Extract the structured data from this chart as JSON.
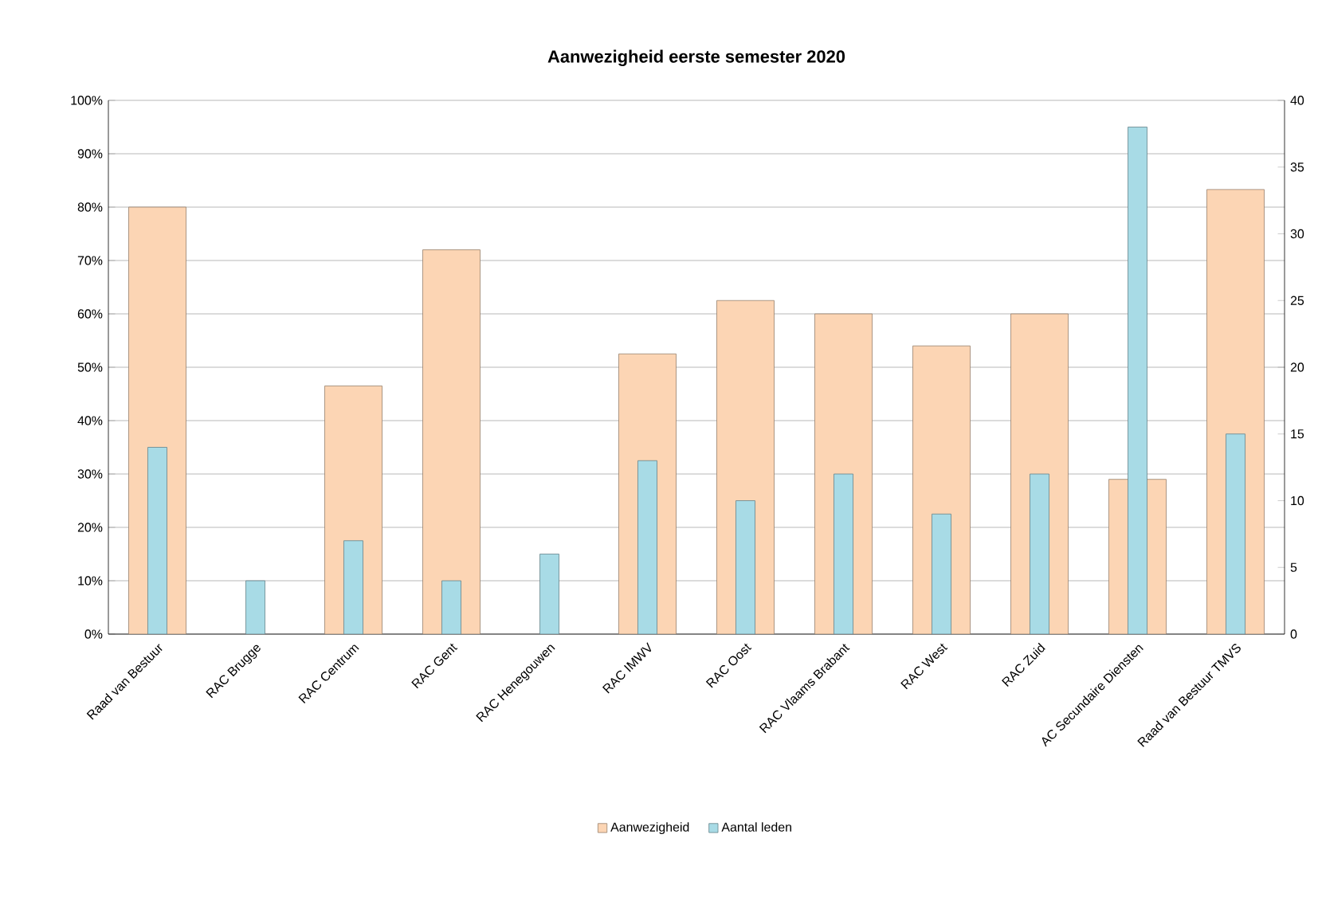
{
  "chart_data": {
    "type": "bar",
    "title": "Aanwezigheid eerste semester 2020",
    "categories": [
      "Raad van Bestuur",
      "RAC Brugge",
      "RAC Centrum",
      "RAC Gent",
      "RAC Henegouwen",
      "RAC IMWV",
      "RAC Oost",
      "RAC Vlaams Brabant",
      "RAC West",
      "RAC Zuid",
      "AC Secundaire Diensten",
      "Raad van Bestuur TMVS"
    ],
    "series": [
      {
        "name": "Aanwezigheid",
        "color": "#fcd5b4",
        "values": [
          80,
          null,
          46.5,
          72,
          null,
          52.5,
          62.5,
          60,
          54,
          60,
          29,
          83.3
        ]
      },
      {
        "name": "Aantal leden",
        "color": "#a8dbe6",
        "axis": "y2",
        "values": [
          14,
          4,
          7,
          4,
          6,
          13,
          10,
          12,
          9,
          12,
          38,
          15
        ]
      }
    ],
    "ylim": [
      0,
      100
    ],
    "yticks": [
      {
        "value": 0,
        "label": "0%"
      },
      {
        "value": 10,
        "label": "10%"
      },
      {
        "value": 20,
        "label": "20%"
      },
      {
        "value": 30,
        "label": "30%"
      },
      {
        "value": 40,
        "label": "40%"
      },
      {
        "value": 50,
        "label": "50%"
      },
      {
        "value": 60,
        "label": "60%"
      },
      {
        "value": 70,
        "label": "70%"
      },
      {
        "value": 80,
        "label": "80%"
      },
      {
        "value": 90,
        "label": "90%"
      },
      {
        "value": 100,
        "label": "100%"
      }
    ],
    "y2lim": [
      0,
      40
    ],
    "y2ticks": [
      0,
      5,
      10,
      15,
      20,
      25,
      30,
      35,
      40
    ],
    "grid": "y",
    "legend": "bottom"
  }
}
